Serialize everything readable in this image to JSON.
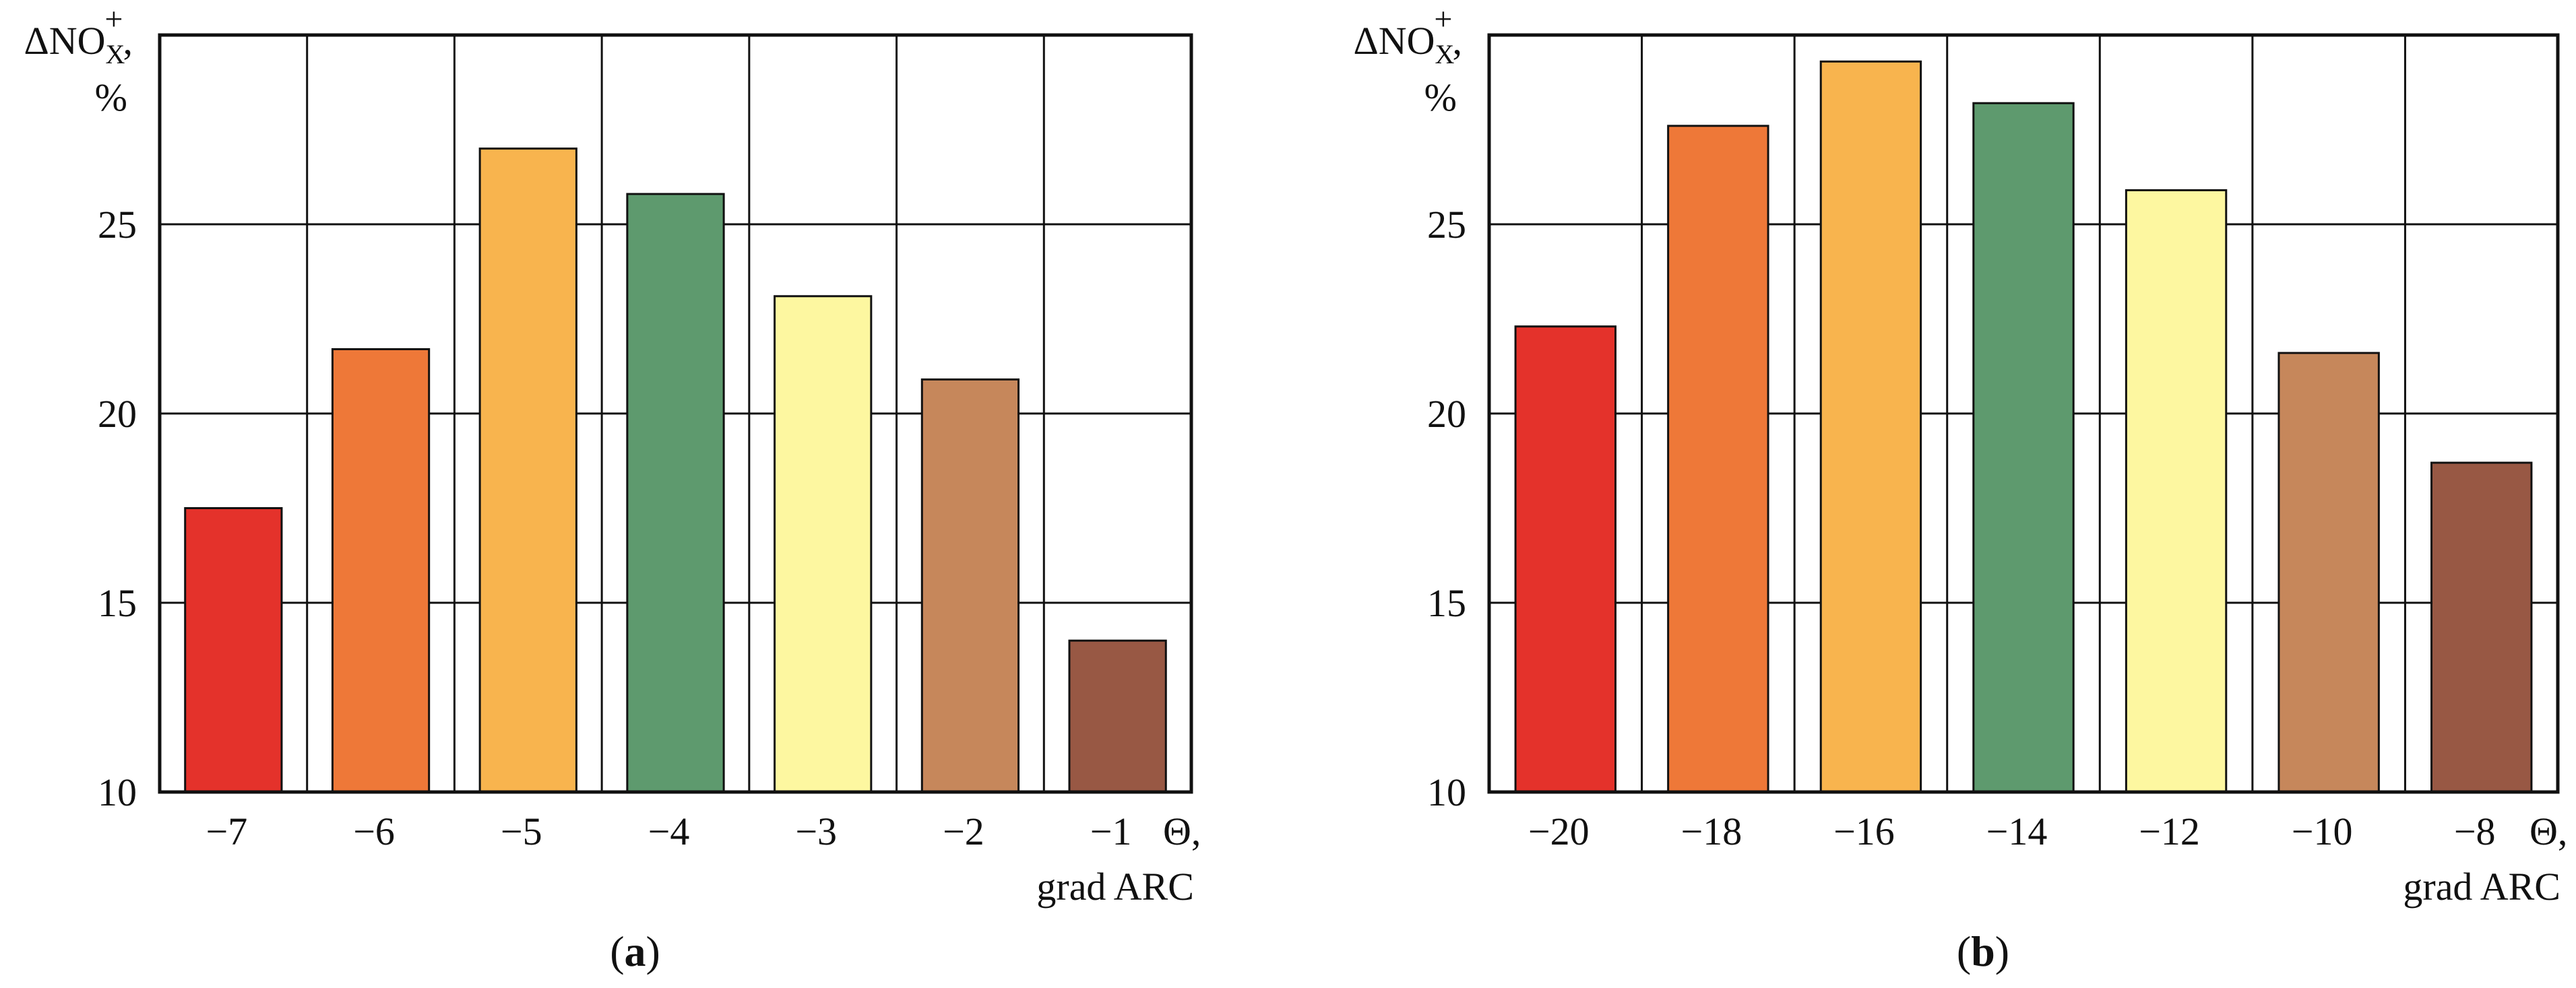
{
  "chart_data": [
    {
      "type": "bar",
      "panel_label": "a",
      "y_label": {
        "main": "ΔNO",
        "sub": "X",
        "sup": "+",
        "comma": ",",
        "unit": "%"
      },
      "x_label": {
        "symbol": "Θ,",
        "unit": "grad ARC"
      },
      "categories": [
        "−7",
        "−6",
        "−5",
        "−4",
        "−3",
        "−2",
        "−1"
      ],
      "values": [
        17.5,
        21.7,
        27.0,
        25.8,
        23.1,
        20.9,
        14.0
      ],
      "colors": [
        "#e4322b",
        "#ee7838",
        "#f8b44e",
        "#5e9a6e",
        "#fdf7a0",
        "#c6875b",
        "#985844"
      ],
      "ylim": [
        10,
        30
      ],
      "yticks": [
        10,
        15,
        20,
        25
      ],
      "grid": true
    },
    {
      "type": "bar",
      "panel_label": "b",
      "y_label": {
        "main": "ΔNO",
        "sub": "X",
        "sup": "+",
        "comma": ",",
        "unit": "%"
      },
      "x_label": {
        "symbol": "Θ,",
        "unit": "grad ARC"
      },
      "categories": [
        "−20",
        "−18",
        "−16",
        "−14",
        "−12",
        "−10",
        "−8"
      ],
      "values": [
        22.3,
        27.6,
        29.3,
        28.2,
        25.9,
        21.6,
        18.7
      ],
      "colors": [
        "#e4322b",
        "#ee7838",
        "#f8b44e",
        "#5e9a6e",
        "#fdf7a0",
        "#c6875b",
        "#985844"
      ],
      "ylim": [
        10,
        30
      ],
      "yticks": [
        10,
        15,
        20,
        25
      ],
      "grid": true
    }
  ]
}
